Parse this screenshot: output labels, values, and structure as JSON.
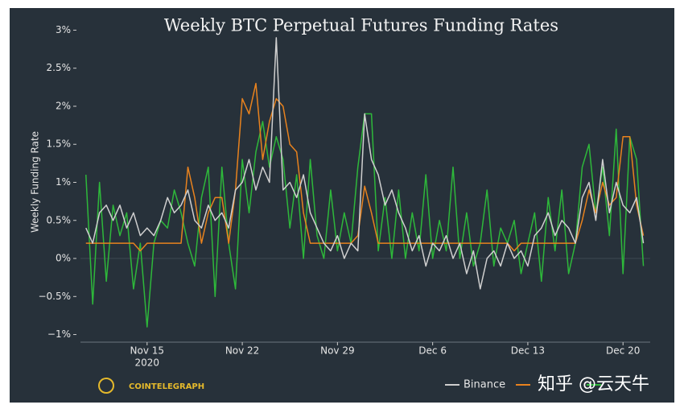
{
  "chart_data": {
    "type": "line",
    "title": "Weekly BTC Perpetual Futures Funding Rates",
    "y_label": "Weekly Funding Rate",
    "x_year_label": "2020",
    "logo_text": "COINTELEGRAPH",
    "watermark": "知乎 @云天牛",
    "x": [
      10.5,
      11,
      11.5,
      12,
      12.5,
      13,
      13.5,
      14,
      14.5,
      15,
      15.5,
      16,
      16.5,
      17,
      17.5,
      18,
      18.5,
      19,
      19.5,
      20,
      20.5,
      21,
      21.5,
      22,
      22.5,
      23,
      23.5,
      24,
      24.5,
      25,
      25.5,
      26,
      26.5,
      27,
      27.5,
      28,
      28.5,
      29,
      29.5,
      30,
      30.5,
      31,
      31.5,
      32,
      32.5,
      33,
      33.5,
      34,
      34.5,
      35,
      35.5,
      36,
      36.5,
      37,
      37.5,
      38,
      38.5,
      39,
      39.5,
      40,
      40.5,
      41,
      41.5,
      42,
      42.5,
      43,
      43.5,
      44,
      44.5,
      45,
      45.5,
      46,
      46.5,
      47,
      47.5,
      48,
      48.5,
      49,
      49.5,
      50,
      50.5,
      51,
      51.5
    ],
    "xlim": [
      10.1,
      52
    ],
    "xticks": [
      {
        "value": 15,
        "label": "Nov 15"
      },
      {
        "value": 22,
        "label": "Nov 22"
      },
      {
        "value": 29,
        "label": "Nov 29"
      },
      {
        "value": 36,
        "label": "Dec 6"
      },
      {
        "value": 43,
        "label": "Dec 13"
      },
      {
        "value": 50,
        "label": "Dec 20"
      }
    ],
    "ylim": [
      -1.1,
      3.1
    ],
    "yticks": [
      {
        "value": 3,
        "label": "3%"
      },
      {
        "value": 2.5,
        "label": "2.5%"
      },
      {
        "value": 2,
        "label": "2%"
      },
      {
        "value": 1.5,
        "label": "1.5%"
      },
      {
        "value": 1,
        "label": "1%"
      },
      {
        "value": 0.5,
        "label": "0.5%"
      },
      {
        "value": 0,
        "label": "0%"
      },
      {
        "value": -0.5,
        "label": "−0.5%"
      },
      {
        "value": -1,
        "label": "−1%"
      }
    ],
    "legend": "bottom-right",
    "series": [
      {
        "color": "#2eb83a",
        "values": [
          1.1,
          -0.6,
          1.0,
          -0.3,
          0.7,
          0.3,
          0.6,
          -0.4,
          0.2,
          -0.9,
          0.2,
          0.5,
          0.4,
          0.9,
          0.6,
          0.2,
          -0.1,
          0.8,
          1.2,
          -0.5,
          1.2,
          0.2,
          -0.4,
          1.3,
          0.6,
          1.4,
          1.8,
          1.2,
          1.6,
          1.3,
          0.4,
          1.1,
          0.0,
          1.3,
          0.3,
          0.0,
          0.9,
          0.1,
          0.6,
          0.2,
          1.2,
          1.9,
          1.9,
          0.1,
          0.8,
          0.0,
          0.9,
          0.0,
          0.6,
          0.1,
          1.1,
          0.0,
          0.5,
          0.1,
          1.2,
          0.0,
          0.6,
          -0.1,
          0.2,
          0.9,
          -0.1,
          0.4,
          0.2,
          0.5,
          -0.2,
          0.2,
          0.6,
          -0.3,
          0.8,
          0.1,
          0.9,
          -0.2,
          0.2,
          1.2,
          1.5,
          0.6,
          1.2,
          0.3,
          1.7,
          -0.2,
          1.6,
          1.3,
          -0.1
        ]
      },
      {
        "color": "#e8821e",
        "values": [
          0.2,
          0.2,
          0.2,
          0.2,
          0.2,
          0.2,
          0.2,
          0.2,
          0.1,
          0.2,
          0.2,
          0.2,
          0.2,
          0.2,
          0.2,
          1.2,
          0.8,
          0.2,
          0.6,
          0.8,
          0.8,
          0.2,
          0.9,
          2.1,
          1.9,
          2.3,
          1.3,
          1.8,
          2.1,
          2.0,
          1.5,
          1.4,
          0.6,
          0.2,
          0.2,
          0.2,
          0.2,
          0.2,
          0.2,
          0.2,
          0.3,
          0.95,
          0.6,
          0.2,
          0.2,
          0.2,
          0.2,
          0.2,
          0.2,
          0.2,
          0.2,
          0.2,
          0.2,
          0.2,
          0.2,
          0.2,
          0.2,
          0.2,
          0.2,
          0.2,
          0.2,
          0.2,
          0.2,
          0.1,
          0.2,
          0.2,
          0.2,
          0.2,
          0.2,
          0.2,
          0.2,
          0.2,
          0.2,
          0.5,
          0.9,
          0.6,
          1.0,
          0.7,
          0.8,
          1.6,
          1.6,
          0.7,
          0.3
        ]
      },
      {
        "name": "Binance",
        "color": "#cfcfcf",
        "values": [
          0.4,
          0.2,
          0.6,
          0.7,
          0.5,
          0.7,
          0.4,
          0.6,
          0.3,
          0.4,
          0.3,
          0.5,
          0.8,
          0.6,
          0.7,
          0.9,
          0.5,
          0.4,
          0.7,
          0.5,
          0.6,
          0.4,
          0.9,
          1.0,
          1.3,
          0.9,
          1.2,
          1.0,
          2.9,
          0.9,
          1.0,
          0.8,
          1.1,
          0.6,
          0.4,
          0.2,
          0.1,
          0.3,
          0.0,
          0.2,
          0.1,
          1.9,
          1.3,
          1.1,
          0.7,
          0.9,
          0.6,
          0.4,
          0.1,
          0.3,
          -0.1,
          0.2,
          0.1,
          0.3,
          0.0,
          0.2,
          -0.2,
          0.1,
          -0.4,
          0.0,
          0.1,
          -0.1,
          0.2,
          0.0,
          0.1,
          -0.1,
          0.3,
          0.4,
          0.6,
          0.3,
          0.5,
          0.4,
          0.2,
          0.8,
          1.0,
          0.5,
          1.3,
          0.6,
          1.0,
          0.7,
          0.6,
          0.8,
          0.2
        ]
      }
    ]
  }
}
